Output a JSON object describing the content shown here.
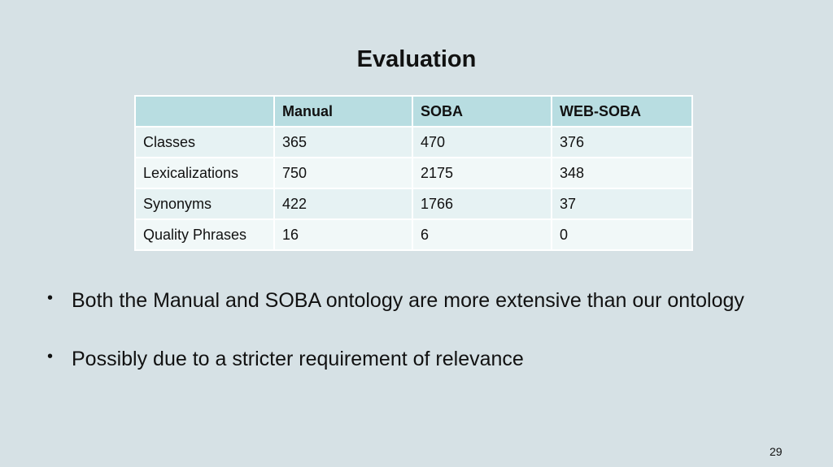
{
  "slide": {
    "title": "Evaluation",
    "page_number": "29"
  },
  "table": {
    "headers": [
      "",
      "Manual",
      "SOBA",
      "WEB-SOBA"
    ],
    "rows": [
      [
        "Classes",
        "365",
        "470",
        "376"
      ],
      [
        "Lexicalizations",
        "750",
        "2175",
        "348"
      ],
      [
        "Synonyms",
        "422",
        "1766",
        "37"
      ],
      [
        "Quality Phrases",
        "16",
        "6",
        "0"
      ]
    ]
  },
  "bullets": [
    "Both the Manual and SOBA ontology are more extensive than our ontology",
    "Possibly due to a stricter requirement of relevance"
  ],
  "bullet_glyph": "•"
}
